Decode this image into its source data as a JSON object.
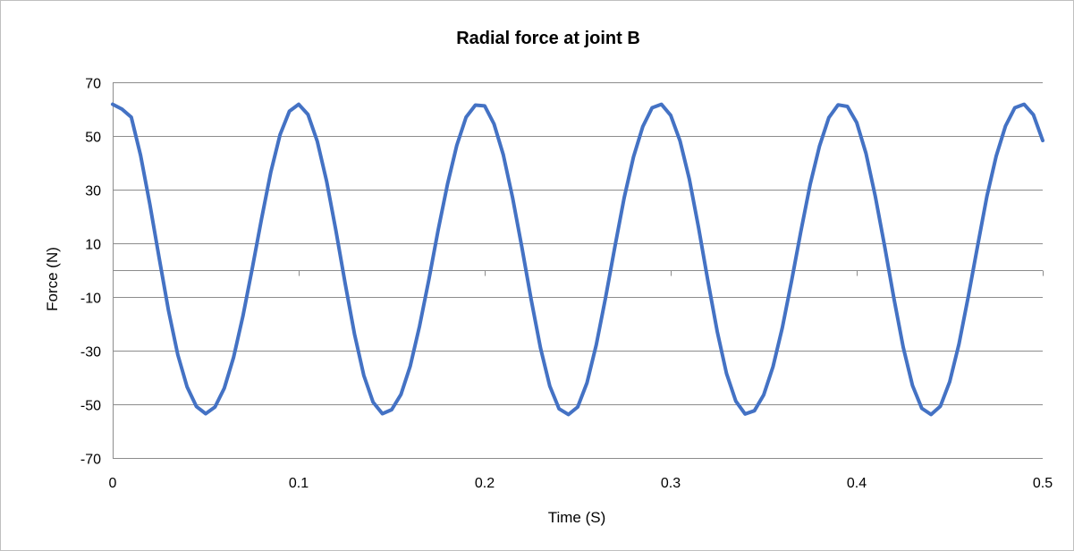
{
  "chart_data": {
    "type": "line",
    "title": "Radial force at joint B",
    "xlabel": "Time (S)",
    "ylabel": "Force (N)",
    "xlim": [
      0,
      0.5
    ],
    "ylim": [
      -70,
      70
    ],
    "x_ticks": [
      0,
      0.1,
      0.2,
      0.3,
      0.4,
      0.5
    ],
    "x_tick_labels": [
      "0",
      "0.1",
      "0.2",
      "0.3",
      "0.4",
      "0.5"
    ],
    "y_ticks": [
      70,
      50,
      30,
      10,
      -10,
      -30,
      -50,
      -70
    ],
    "y_tick_labels": [
      "70",
      "50",
      "30",
      "10",
      "-10",
      "-30",
      "-50",
      "-70"
    ],
    "grid": "horizontal",
    "legend": "none",
    "series": [
      {
        "color": "#4472c4",
        "x": [
          0,
          0.005,
          0.01,
          0.015,
          0.02,
          0.025,
          0.03,
          0.035,
          0.04,
          0.045,
          0.05,
          0.055,
          0.06,
          0.065,
          0.07,
          0.075,
          0.08,
          0.085,
          0.09,
          0.095,
          0.1,
          0.105,
          0.11,
          0.115,
          0.12,
          0.125,
          0.13,
          0.135,
          0.14,
          0.145,
          0.15,
          0.155,
          0.16,
          0.165,
          0.17,
          0.175,
          0.18,
          0.185,
          0.19,
          0.195,
          0.2,
          0.205,
          0.21,
          0.215,
          0.22,
          0.225,
          0.23,
          0.235,
          0.24,
          0.245,
          0.25,
          0.255,
          0.26,
          0.265,
          0.27,
          0.275,
          0.28,
          0.285,
          0.29,
          0.295,
          0.3,
          0.305,
          0.31,
          0.315,
          0.32,
          0.325,
          0.33,
          0.335,
          0.34,
          0.345,
          0.35,
          0.355,
          0.36,
          0.365,
          0.37,
          0.375,
          0.38,
          0.385,
          0.39,
          0.395,
          0.4,
          0.405,
          0.41,
          0.415,
          0.42,
          0.425,
          0.43,
          0.435,
          0.44,
          0.445,
          0.45,
          0.455,
          0.46,
          0.465,
          0.47,
          0.475,
          0.48,
          0.485,
          0.49,
          0.495,
          0.5
        ],
        "y": [
          61.8,
          60,
          57,
          42.8,
          24.5,
          4.5,
          -15,
          -31.5,
          -43.5,
          -50.8,
          -53.5,
          -51,
          -44,
          -32.5,
          -17.2,
          0.5,
          19,
          36.5,
          50.5,
          59.2,
          61.8,
          58,
          48,
          33.2,
          14.8,
          -5,
          -23.8,
          -39.2,
          -49.2,
          -53.5,
          -52,
          -46.3,
          -35.7,
          -20.8,
          -3.5,
          15,
          32,
          46.5,
          57,
          61.5,
          61.2,
          54.5,
          43,
          27,
          8.5,
          -11,
          -29,
          -43.2,
          -51.7,
          -53.8,
          -51,
          -42,
          -27.8,
          -10.2,
          8.7,
          27,
          42.2,
          53.5,
          60.5,
          61.8,
          57.7,
          48.2,
          34,
          15.8,
          -4,
          -22.8,
          -38.5,
          -48.8,
          -53.6,
          -52.4,
          -46.5,
          -36,
          -21.5,
          -4,
          14.5,
          32,
          46.2,
          56.8,
          61.6,
          61,
          55,
          43.5,
          27.5,
          9,
          -10.5,
          -28.7,
          -43,
          -51.5,
          -53.8,
          -50.7,
          -41.6,
          -27.5,
          -9.8,
          9,
          27.5,
          42.5,
          53.7,
          60.5,
          61.8,
          57.9,
          48.3
        ]
      }
    ]
  }
}
